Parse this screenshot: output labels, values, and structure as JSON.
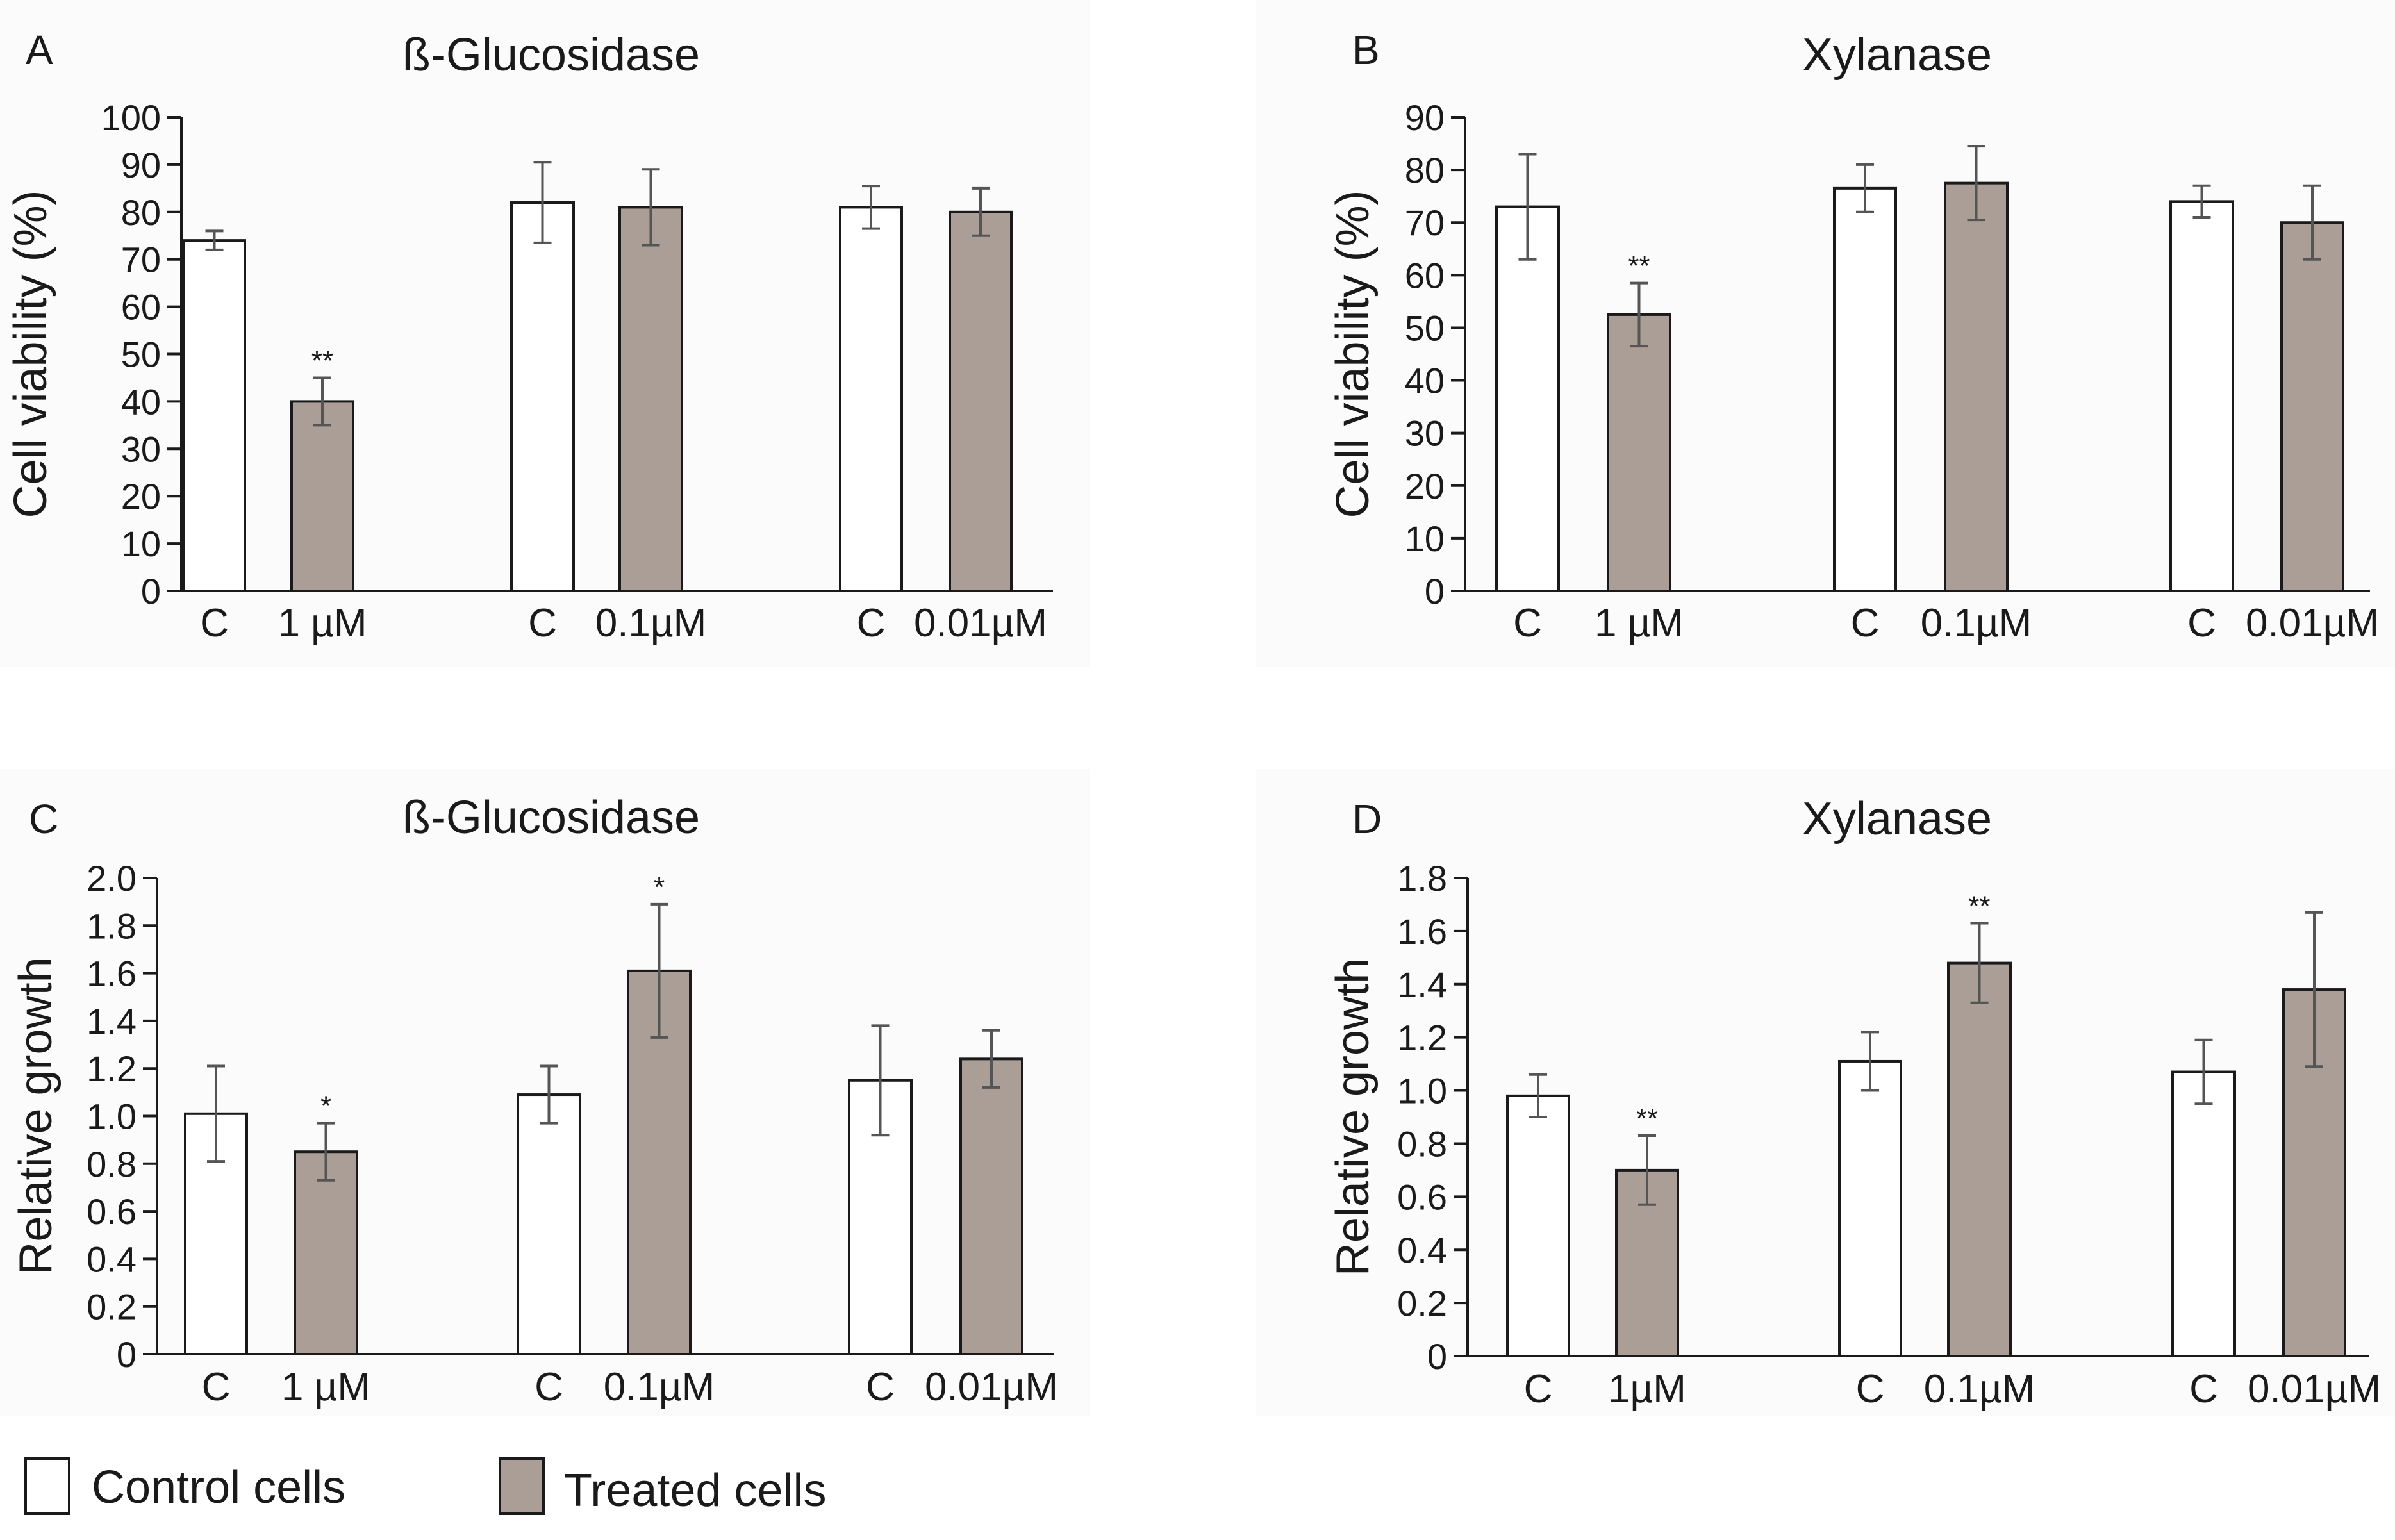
{
  "figure": {
    "colors": {
      "control_fill": "#ffffff",
      "treated_fill": "#aa9e96",
      "bar_stroke": "#1a1a1a",
      "error_bar": "#555555",
      "axis": "#1a1a1a",
      "panel_bg": "#fbfbfb"
    },
    "legend": {
      "control_label": "Control cells",
      "treated_label": "Treated cells"
    }
  },
  "chart_data": [
    {
      "panel": "A",
      "type": "bar",
      "title": "ß-Glucosidase",
      "ylabel": "Cell viability (%)",
      "xlabel": "",
      "ylim": [
        0,
        100
      ],
      "yticks": [
        "0",
        "10",
        "20",
        "30",
        "40",
        "50",
        "60",
        "70",
        "80",
        "90",
        "100"
      ],
      "grid": false,
      "categories": [
        "C",
        "1 µM",
        "C",
        "0.1µM",
        "C",
        "0.01µM"
      ],
      "groups": [
        "control",
        "treated",
        "control",
        "treated",
        "control",
        "treated"
      ],
      "values": [
        74,
        40,
        82,
        81,
        81,
        80
      ],
      "errors": [
        2,
        5,
        8.5,
        8,
        4.5,
        5
      ],
      "significance": [
        "",
        "**",
        "",
        "",
        "",
        ""
      ]
    },
    {
      "panel": "B",
      "type": "bar",
      "title": "Xylanase",
      "ylabel": "Cell viability (%)",
      "xlabel": "",
      "ylim": [
        0,
        90
      ],
      "yticks": [
        "0",
        "10",
        "20",
        "30",
        "40",
        "50",
        "60",
        "70",
        "80",
        "90"
      ],
      "grid": false,
      "categories": [
        "C",
        "1 µM",
        "C",
        "0.1µM",
        "C",
        "0.01µM"
      ],
      "groups": [
        "control",
        "treated",
        "control",
        "treated",
        "control",
        "treated"
      ],
      "values": [
        73,
        52.5,
        76.5,
        77.5,
        74,
        70
      ],
      "errors": [
        10,
        6,
        4.5,
        7,
        3,
        7
      ],
      "significance": [
        "",
        "**",
        "",
        "",
        "",
        ""
      ]
    },
    {
      "panel": "C",
      "type": "bar",
      "title": "ß-Glucosidase",
      "ylabel": "Relative growth",
      "xlabel": "",
      "ylim": [
        0,
        2.0
      ],
      "yticks": [
        "0",
        "0.2",
        "0.4",
        "0.6",
        "0.8",
        "1.0",
        "1.2",
        "1.4",
        "1.6",
        "1.8",
        "2.0"
      ],
      "grid": false,
      "categories": [
        "C",
        "1 µM",
        "C",
        "0.1µM",
        "C",
        "0.01µM"
      ],
      "groups": [
        "control",
        "treated",
        "control",
        "treated",
        "control",
        "treated"
      ],
      "values": [
        1.01,
        0.85,
        1.09,
        1.61,
        1.15,
        1.24
      ],
      "errors": [
        0.2,
        0.12,
        0.12,
        0.28,
        0.23,
        0.12
      ],
      "significance": [
        "",
        "*",
        "",
        "*",
        "",
        ""
      ]
    },
    {
      "panel": "D",
      "type": "bar",
      "title": "Xylanase",
      "ylabel": "Relative growth",
      "xlabel": "",
      "ylim": [
        0,
        1.8
      ],
      "yticks": [
        "0",
        "0.2",
        "0.4",
        "0.6",
        "0.8",
        "1.0",
        "1.2",
        "1.4",
        "1.6",
        "1.8"
      ],
      "grid": false,
      "categories": [
        "C",
        "1µM",
        "C",
        "0.1µM",
        "C",
        "0.01µM"
      ],
      "groups": [
        "control",
        "treated",
        "control",
        "treated",
        "control",
        "treated"
      ],
      "values": [
        0.98,
        0.7,
        1.11,
        1.48,
        1.07,
        1.38
      ],
      "errors": [
        0.08,
        0.13,
        0.11,
        0.15,
        0.12,
        0.29
      ],
      "significance": [
        "",
        "**",
        "",
        "**",
        "",
        ""
      ]
    }
  ]
}
